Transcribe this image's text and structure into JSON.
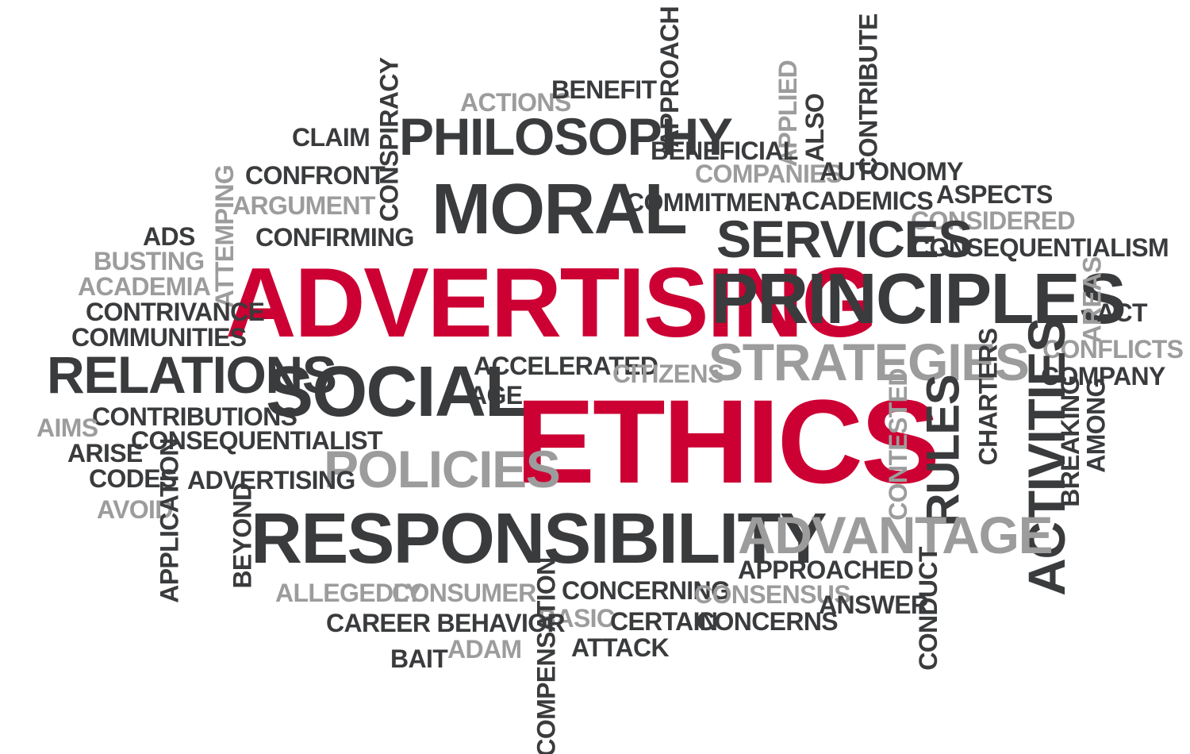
{
  "words": {
    "actions": "ACTIONS",
    "benefit": "BENEFIT",
    "approach": "APPROACH",
    "applied": "APPLIED",
    "also": "ALSO",
    "contribute": "CONTRIBUTE",
    "claim": "CLAIM",
    "conspiracy": "CONSPIRACY",
    "philosophy": "PHILOSOPHY",
    "beneficial": "BENEFICIAL",
    "confront": "CONFRONT",
    "companies": "COMPANIES",
    "autonomy": "AUTONOMY",
    "attemping": "ATTEMPING",
    "moral": "MORAL",
    "argument": "ARGUMENT",
    "commitment": "COMMITMENT",
    "academics": "ACADEMICS",
    "aspects": "ASPECTS",
    "considered": "CONSIDERED",
    "ads": "ADS",
    "confirming": "CONFIRMING",
    "services": "SERVICES",
    "consequentialism": "CONSEQUENTIALISM",
    "busting": "BUSTING",
    "advertising_main": "ADVERTISING",
    "principles": "PRINCIPLES",
    "academia": "ACADEMIA",
    "areas": "AREAS",
    "contrivance": "CONTRIVANCE",
    "act": "ACT",
    "communities": "COMMUNITIES",
    "conflicts": "CONFLICTS",
    "strategies": "STRATEGIES",
    "relations": "RELATIONS",
    "accelerated": "ACCELERATED",
    "citizens": "CITIZENS",
    "social": "SOCIAL",
    "company": "COMPANY",
    "charters": "CHARTERS",
    "age": "AGE",
    "ethics": "ETHICS",
    "contested": "CONTESTED",
    "rules": "RULES",
    "activities": "ACTIVITIES",
    "breaking": "BREAKING",
    "among": "AMONG",
    "contributions": "CONTRIBUTIONS",
    "aims": "AIMS",
    "consequentialist": "CONSEQUENTIALIST",
    "arise": "ARISE",
    "policies": "POLICIES",
    "codes": "CODES",
    "advertising_small": "ADVERTISING",
    "avoid": "AVOID",
    "application": "APPLICATION",
    "beyond": "BEYOND",
    "responsibility": "RESPONSIBILITY",
    "advantage": "ADVANTAGE",
    "approached": "APPROACHED",
    "allegedly": "ALLEGEDLY",
    "consumer": "CONSUMER",
    "concerning": "CONCERNING",
    "consensus": "CONSENSUS",
    "answer": "ANSWER",
    "conduct": "CONDUCT",
    "basic": "BASIC",
    "career_behavior": "CAREER BEHAVIOR",
    "certain": "CERTAIN",
    "concerns": "CONCERNS",
    "compensation": "COMPENSATION",
    "adam": "ADAM",
    "attack": "ATTACK",
    "bait": "BAIT"
  },
  "colors": {
    "dark": "#3a3b3d",
    "grey": "#9c9c9c",
    "red": "#cc0033",
    "background": "#ffffff"
  }
}
